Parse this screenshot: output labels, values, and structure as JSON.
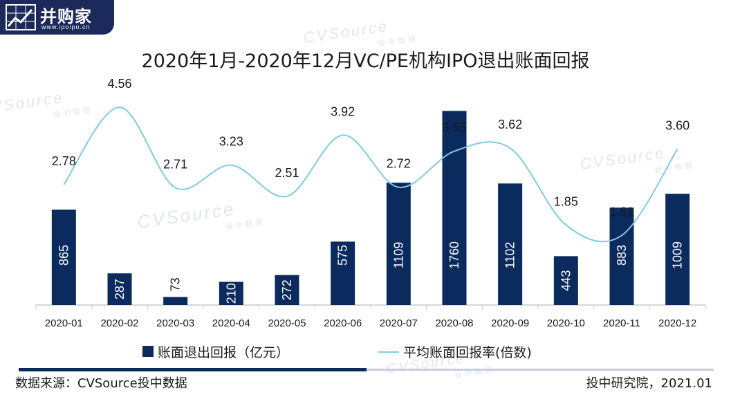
{
  "logo": {
    "brand": "并购家",
    "url": "www.ipoipo.cn"
  },
  "watermark": {
    "main": "CVSource",
    "sub": "投 中 数 据"
  },
  "chart_data": {
    "type": "bar",
    "title": "2020年1月-2020年12月VC/PE机构IPO退出账面回报",
    "categories": [
      "2020-01",
      "2020-02",
      "2020-03",
      "2020-04",
      "2020-05",
      "2020-06",
      "2020-07",
      "2020-08",
      "2020-09",
      "2020-10",
      "2020-11",
      "2020-12"
    ],
    "series": [
      {
        "name": "账面退出回报（亿元）",
        "type": "bar",
        "axis": "left",
        "color": "#0b2a5e",
        "values": [
          865,
          287,
          73,
          210,
          272,
          575,
          1109,
          1760,
          1102,
          443,
          883,
          1009
        ]
      },
      {
        "name": "平均账面回报率(倍数)",
        "type": "line",
        "axis": "right",
        "color": "#7fcbe0",
        "values": [
          2.78,
          4.56,
          2.71,
          3.23,
          2.51,
          3.92,
          2.72,
          3.55,
          3.62,
          1.85,
          1.61,
          3.6
        ],
        "labels": [
          "2.78",
          "4.56",
          "2.71",
          "3.23",
          "2.51",
          "3.92",
          "2.72",
          "3.55",
          "3.62",
          "1.85",
          "1.61",
          "3.60"
        ]
      }
    ],
    "left_axis_range": [
      0,
      1800
    ],
    "right_axis_range": [
      0,
      5
    ],
    "grid": false,
    "legend_position": "bottom"
  },
  "footer": {
    "source": "数据来源：CVSource投中数据",
    "credit": "投中研究院，2021.01"
  }
}
